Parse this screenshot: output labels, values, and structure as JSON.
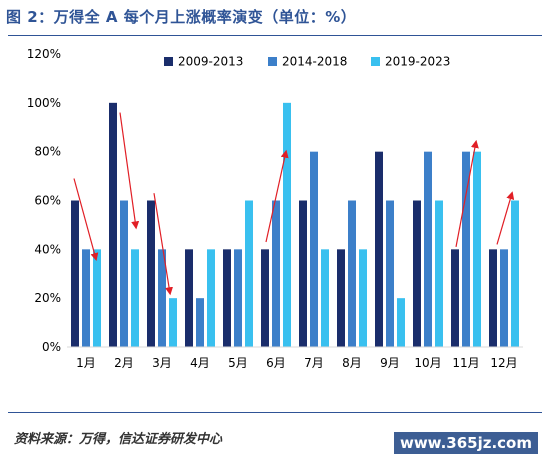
{
  "title": "图 2：万得全 A 每个月上涨概率演变（单位：%）",
  "source": "资料来源：万得，信达证券研发中心",
  "watermark": "www.365jz.com",
  "chart_data": {
    "type": "bar",
    "categories": [
      "1月",
      "2月",
      "3月",
      "4月",
      "5月",
      "6月",
      "7月",
      "8月",
      "9月",
      "10月",
      "11月",
      "12月"
    ],
    "series": [
      {
        "name": "2009-2013",
        "color": "#1a2d6b",
        "values": [
          60,
          100,
          60,
          40,
          40,
          40,
          60,
          40,
          80,
          60,
          40,
          40
        ]
      },
      {
        "name": "2014-2018",
        "color": "#3c7fc9",
        "values": [
          40,
          60,
          40,
          20,
          40,
          60,
          80,
          60,
          60,
          80,
          80,
          40
        ]
      },
      {
        "name": "2019-2023",
        "color": "#39c0ef",
        "values": [
          40,
          40,
          20,
          40,
          60,
          100,
          40,
          40,
          20,
          60,
          80,
          60
        ]
      }
    ],
    "yticks": [
      "0%",
      "20%",
      "40%",
      "60%",
      "80%",
      "100%",
      "120%"
    ],
    "ylim": [
      0,
      120
    ],
    "grid": false,
    "legend_position": "top-right",
    "annotations": [
      {
        "type": "arrow",
        "from": {
          "category": "1月",
          "y": 69
        },
        "to": {
          "category": "1月",
          "y": 36
        },
        "color": "#e11f26"
      },
      {
        "type": "arrow",
        "from": {
          "category": "2月",
          "y": 96
        },
        "to": {
          "category": "2月",
          "y": 49
        },
        "color": "#e11f26"
      },
      {
        "type": "arrow",
        "from": {
          "category": "3月",
          "y": 63
        },
        "to": {
          "category": "3月",
          "y": 22
        },
        "color": "#e11f26"
      },
      {
        "type": "arrow",
        "from": {
          "category": "6月",
          "y": 43
        },
        "to": {
          "category": "6月",
          "y": 80
        },
        "color": "#e11f26"
      },
      {
        "type": "arrow",
        "from": {
          "category": "11月",
          "y": 41
        },
        "to": {
          "category": "11月",
          "y": 84
        },
        "color": "#e11f26"
      },
      {
        "type": "arrow",
        "from": {
          "category": "12月",
          "y": 42
        },
        "to": {
          "category": "12月",
          "y": 63
        },
        "color": "#e11f26"
      }
    ]
  }
}
